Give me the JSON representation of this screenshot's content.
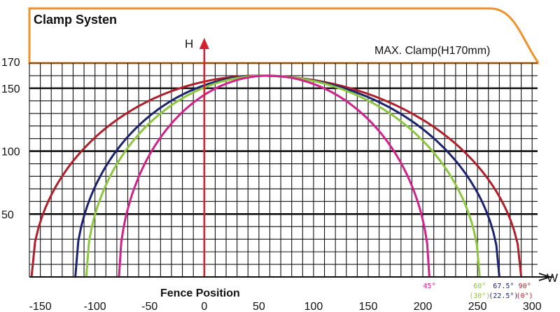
{
  "title": "Clamp Systen",
  "max_clamp_label": "MAX. Clamp(H170mm)",
  "colors": {
    "frame": "#f0922c",
    "axis": "#d6202e",
    "grid": "#111111"
  },
  "chart_data": {
    "type": "line",
    "title": "Clamp Systen",
    "xlabel": "W",
    "ylabel": "H",
    "fence_label": "Fence Position",
    "xlim": [
      -160,
      305
    ],
    "ylim": [
      0,
      170
    ],
    "grid": true,
    "x_ticks": [
      -150,
      -100,
      -50,
      0,
      50,
      100,
      150,
      200,
      250,
      300
    ],
    "y_ticks": [
      50,
      100,
      150
    ],
    "y_top_label": 170,
    "series": [
      {
        "name": "90°",
        "sub": "(0°)",
        "color": "#b01f2a",
        "x_min": -158,
        "x_max": 290,
        "peak_x": 50,
        "peak_y": 160
      },
      {
        "name": "67.5°",
        "sub": "(22.5°)",
        "color": "#1b2370",
        "x_min": -118,
        "x_max": 270,
        "peak_x": 52,
        "peak_y": 160
      },
      {
        "name": "60°",
        "sub": "(30°)",
        "color": "#8cc63f",
        "x_min": -108,
        "x_max": 252,
        "peak_x": 55,
        "peak_y": 160
      },
      {
        "name": "45°",
        "sub": "",
        "color": "#d0228a",
        "x_min": -78,
        "x_max": 206,
        "peak_x": 58,
        "peak_y": 160
      }
    ]
  }
}
